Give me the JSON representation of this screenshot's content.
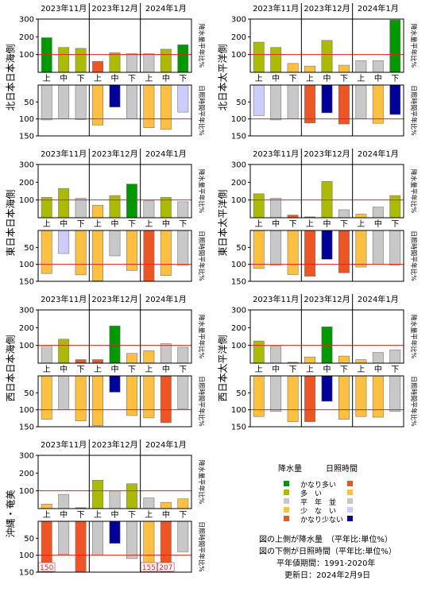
{
  "months": [
    "2023年11月",
    "2023年12月",
    "2024年1月"
  ],
  "periods": [
    "上",
    "中",
    "下",
    "上",
    "中",
    "下",
    "上",
    "中",
    "下"
  ],
  "axis_labels": {
    "precip": "降水量平年比%",
    "sun": "日照時間平年比%"
  },
  "categories": [
    {
      "key": "much_above",
      "label": "かなり多い",
      "precip_color": "#009900",
      "sun_color": "#ee5522"
    },
    {
      "key": "above",
      "label": "多　い",
      "precip_color": "#aabb00",
      "sun_color": "#ffc040"
    },
    {
      "key": "normal",
      "label": "平　年　並",
      "precip_color": "#c8c8c8",
      "sun_color": "#c8c8c8"
    },
    {
      "key": "below",
      "label": "少　な　い",
      "precip_color": "#ffc040",
      "sun_color": "#ccccff"
    },
    {
      "key": "much_below",
      "label": "かなり少ない",
      "precip_color": "#ee5522",
      "sun_color": "#000099"
    }
  ],
  "legend": {
    "precip_header": "降水量",
    "sun_header": "日照時間"
  },
  "notes": [
    "図の上側が降水量　（平年比:単位%）",
    "図の下側が日照時間（平年比:単位%）",
    "平年値期間：1991-2020年",
    "更新日：2024年2月9日"
  ],
  "chart_data": [
    {
      "type": "bar",
      "region": "北日本日本海側",
      "categories": [
        "11月上",
        "11月中",
        "11月下",
        "12月上",
        "12月中",
        "12月下",
        "1月上",
        "1月中",
        "1月下"
      ],
      "precip": {
        "ylim": [
          0,
          300
        ],
        "yticks": [
          100,
          200,
          300
        ],
        "ref": 100,
        "values": [
          195,
          140,
          135,
          62,
          110,
          105,
          105,
          130,
          155
        ],
        "classes": [
          "much_above",
          "above",
          "above",
          "much_below",
          "above",
          "normal",
          "normal",
          "above",
          "much_above"
        ]
      },
      "sunshine": {
        "ylim": [
          0,
          150
        ],
        "yticks": [
          50,
          100,
          150
        ],
        "ref": 100,
        "inverted": true,
        "values": [
          103,
          100,
          102,
          118,
          65,
          100,
          126,
          131,
          80
        ],
        "classes": [
          "normal",
          "normal",
          "normal",
          "above",
          "much_below",
          "normal",
          "above",
          "above",
          "below"
        ]
      }
    },
    {
      "type": "bar",
      "region": "北日本太平洋側",
      "categories": [
        "11月上",
        "11月中",
        "11月下",
        "12月上",
        "12月中",
        "12月下",
        "1月上",
        "1月中",
        "1月下"
      ],
      "precip": {
        "ylim": [
          0,
          300
        ],
        "yticks": [
          100,
          200,
          300
        ],
        "ref": 100,
        "values": [
          170,
          140,
          50,
          35,
          180,
          40,
          65,
          65,
          295
        ],
        "classes": [
          "above",
          "above",
          "below",
          "below",
          "above",
          "below",
          "normal",
          "normal",
          "much_above"
        ]
      },
      "sunshine": {
        "ylim": [
          0,
          150
        ],
        "yticks": [
          50,
          100,
          150
        ],
        "ref": 100,
        "inverted": true,
        "values": [
          90,
          103,
          100,
          112,
          82,
          115,
          100,
          113,
          87
        ],
        "classes": [
          "below",
          "normal",
          "normal",
          "much_above",
          "much_below",
          "much_above",
          "normal",
          "above",
          "much_below"
        ]
      }
    },
    {
      "type": "bar",
      "region": "東日本日本海側",
      "categories": [
        "11月上",
        "11月中",
        "11月下",
        "12月上",
        "12月中",
        "12月下",
        "1月上",
        "1月中",
        "1月下"
      ],
      "precip": {
        "ylim": [
          0,
          300
        ],
        "yticks": [
          100,
          200,
          300
        ],
        "ref": 100,
        "values": [
          115,
          165,
          110,
          70,
          125,
          190,
          95,
          115,
          90
        ],
        "classes": [
          "above",
          "above",
          "normal",
          "below",
          "above",
          "much_above",
          "normal",
          "above",
          "normal"
        ]
      },
      "sunshine": {
        "ylim": [
          0,
          150
        ],
        "yticks": [
          50,
          100,
          150
        ],
        "ref": 100,
        "inverted": true,
        "values": [
          127,
          68,
          131,
          148,
          75,
          118,
          150,
          133,
          103
        ],
        "classes": [
          "above",
          "below",
          "above",
          "above",
          "normal",
          "above",
          "much_above",
          "above",
          "normal"
        ]
      }
    },
    {
      "type": "bar",
      "region": "東日本太平洋側",
      "categories": [
        "11月上",
        "11月中",
        "11月下",
        "12月上",
        "12月中",
        "12月下",
        "1月上",
        "1月中",
        "1月下"
      ],
      "precip": {
        "ylim": [
          0,
          300
        ],
        "yticks": [
          100,
          200,
          300
        ],
        "ref": 100,
        "values": [
          135,
          110,
          15,
          5,
          205,
          45,
          20,
          60,
          125
        ],
        "classes": [
          "above",
          "normal",
          "much_below",
          "much_below",
          "above",
          "normal",
          "below",
          "normal",
          "above"
        ]
      },
      "sunshine": {
        "ylim": [
          0,
          150
        ],
        "yticks": [
          50,
          100,
          150
        ],
        "ref": 100,
        "inverted": true,
        "values": [
          112,
          103,
          130,
          135,
          85,
          125,
          108,
          100,
          102
        ],
        "classes": [
          "above",
          "normal",
          "above",
          "much_above",
          "much_below",
          "much_above",
          "above",
          "normal",
          "normal"
        ]
      }
    },
    {
      "type": "bar",
      "region": "西日本日本海側",
      "categories": [
        "11月上",
        "11月中",
        "11月下",
        "12月上",
        "12月中",
        "12月下",
        "1月上",
        "1月中",
        "1月下"
      ],
      "precip": {
        "ylim": [
          0,
          300
        ],
        "yticks": [
          100,
          200,
          300
        ],
        "ref": 100,
        "values": [
          100,
          135,
          20,
          20,
          210,
          55,
          70,
          110,
          90
        ],
        "classes": [
          "normal",
          "above",
          "much_below",
          "much_below",
          "much_above",
          "below",
          "below",
          "normal",
          "normal"
        ]
      },
      "sunshine": {
        "ylim": [
          0,
          150
        ],
        "yticks": [
          50,
          100,
          150
        ],
        "ref": 100,
        "inverted": true,
        "values": [
          128,
          100,
          133,
          147,
          48,
          117,
          124,
          138,
          98
        ],
        "classes": [
          "above",
          "normal",
          "above",
          "above",
          "much_below",
          "above",
          "above",
          "much_above",
          "normal"
        ]
      }
    },
    {
      "type": "bar",
      "region": "西日本太平洋側",
      "categories": [
        "11月上",
        "11月中",
        "11月下",
        "12月上",
        "12月中",
        "12月下",
        "1月上",
        "1月中",
        "1月下"
      ],
      "precip": {
        "ylim": [
          0,
          300
        ],
        "yticks": [
          100,
          200,
          300
        ],
        "ref": 100,
        "values": [
          125,
          95,
          5,
          35,
          205,
          40,
          20,
          60,
          75
        ],
        "classes": [
          "above",
          "normal",
          "much_below",
          "below",
          "much_above",
          "below",
          "below",
          "normal",
          "normal"
        ]
      },
      "sunshine": {
        "ylim": [
          0,
          150
        ],
        "yticks": [
          50,
          100,
          150
        ],
        "ref": 100,
        "inverted": true,
        "values": [
          120,
          105,
          135,
          135,
          75,
          128,
          120,
          122,
          105
        ],
        "classes": [
          "above",
          "normal",
          "above",
          "much_above",
          "much_below",
          "above",
          "above",
          "above",
          "normal"
        ]
      }
    },
    {
      "type": "bar",
      "region": "沖縄・奄美",
      "categories": [
        "11月上",
        "11月中",
        "11月下",
        "12月上",
        "12月中",
        "12月下",
        "1月上",
        "1月中",
        "1月下"
      ],
      "precip": {
        "ylim": [
          0,
          300
        ],
        "yticks": [
          100,
          200,
          300
        ],
        "ref": 100,
        "values": [
          25,
          80,
          5,
          160,
          100,
          140,
          60,
          35,
          55
        ],
        "classes": [
          "below",
          "normal",
          "much_below",
          "above",
          "normal",
          "above",
          "normal",
          "below",
          "below"
        ]
      },
      "sunshine": {
        "ylim": [
          0,
          150
        ],
        "yticks": [
          50,
          100,
          150
        ],
        "ref": 100,
        "inverted": true,
        "values": [
          150,
          98,
          150,
          100,
          65,
          110,
          155,
          207,
          90
        ],
        "classes": [
          "much_above",
          "normal",
          "much_above",
          "normal",
          "much_below",
          "normal",
          "above",
          "much_above",
          "normal"
        ],
        "value_labels": [
          "150",
          "",
          "",
          "",
          "",
          "",
          "155",
          "207",
          ""
        ]
      }
    }
  ]
}
